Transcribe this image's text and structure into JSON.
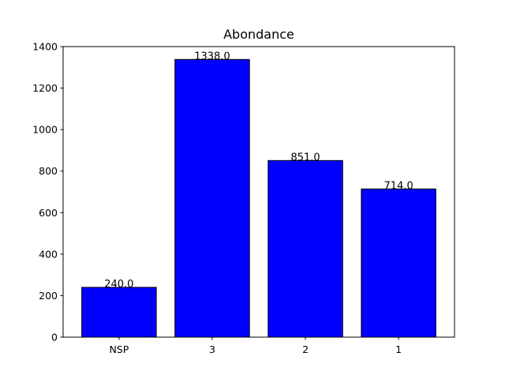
{
  "chart_data": {
    "type": "bar",
    "title": "Abondance",
    "categories": [
      "NSP",
      "3",
      "2",
      "1"
    ],
    "values": [
      240.0,
      1338.0,
      851.0,
      714.0
    ],
    "data_labels": [
      "240.0",
      "1338.0",
      "851.0",
      "714.0"
    ],
    "xlabel": "",
    "ylabel": "",
    "ylim": [
      0,
      1400
    ],
    "yticks": [
      0,
      200,
      400,
      600,
      800,
      1000,
      1200,
      1400
    ],
    "grid": false,
    "bar_color": "#0000ff",
    "edge_color": "#000000"
  }
}
